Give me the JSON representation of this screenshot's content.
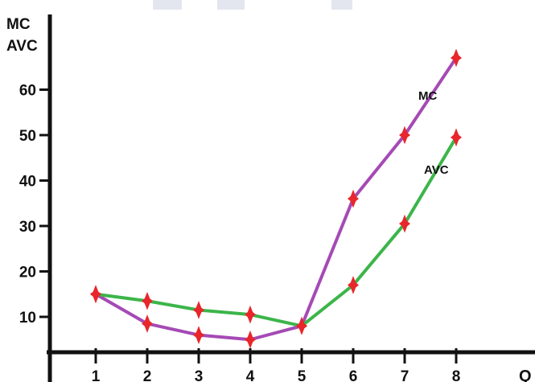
{
  "chart_data": {
    "type": "line",
    "title": "",
    "xlabel": "Q",
    "ylabel": [
      "MC",
      "AVC"
    ],
    "x": [
      1,
      2,
      3,
      4,
      5,
      6,
      7,
      8
    ],
    "x_ticks": [
      "1",
      "2",
      "3",
      "4",
      "5",
      "6",
      "7",
      "8"
    ],
    "y_ticks": [
      10,
      20,
      30,
      40,
      50,
      60
    ],
    "ylim": [
      0,
      70
    ],
    "grid": false,
    "series": [
      {
        "name": "MC",
        "color": "#a54ab5",
        "values": [
          15,
          8.5,
          6,
          5,
          8,
          36,
          50,
          67
        ]
      },
      {
        "name": "AVC",
        "color": "#3cb54a",
        "values": [
          15,
          13.5,
          11.5,
          10.5,
          8,
          17,
          30.5,
          49.5
        ]
      }
    ],
    "marker_color": "#e8262b"
  }
}
